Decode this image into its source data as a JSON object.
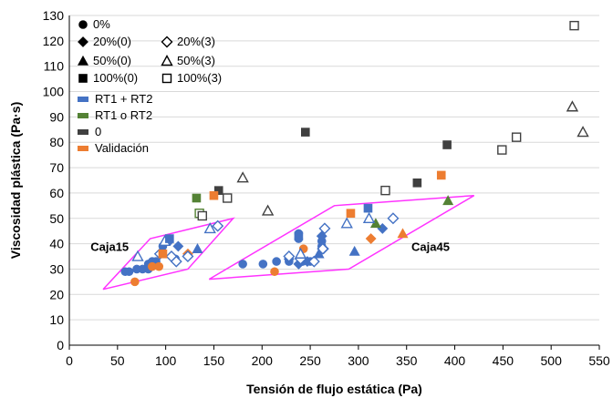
{
  "chart_data": {
    "type": "scatter",
    "xlabel": "Tensión de flujo estática (Pa)",
    "ylabel": "Viscosidad plástica (Pa·s)",
    "xlim": [
      0,
      550
    ],
    "ylim": [
      0,
      130
    ],
    "x_ticks": [
      "0",
      "50",
      "100",
      "150",
      "200",
      "250",
      "300",
      "350",
      "400",
      "450",
      "500",
      "550"
    ],
    "y_ticks": [
      "0",
      "10",
      "20",
      "30",
      "40",
      "50",
      "60",
      "70",
      "80",
      "90",
      "100",
      "110",
      "120",
      "130"
    ],
    "grid": "horizontal",
    "colors": {
      "rt12": "#4472c4",
      "rt1o2": "#548235",
      "zero": "#404040",
      "validacion": "#ed7d31",
      "box": "#ff33ff"
    },
    "legend": {
      "shapes": [
        {
          "label": "0%",
          "marker": "circle",
          "fill": "filled"
        },
        {
          "label": "20%(0)",
          "marker": "diamond",
          "fill": "filled"
        },
        {
          "label": "20%(3)",
          "marker": "diamond",
          "fill": "open"
        },
        {
          "label": "50%(0)",
          "marker": "triangle",
          "fill": "filled"
        },
        {
          "label": "50%(3)",
          "marker": "triangle",
          "fill": "open"
        },
        {
          "label": "100%(0)",
          "marker": "square",
          "fill": "filled"
        },
        {
          "label": "100%(3)",
          "marker": "square",
          "fill": "open"
        }
      ],
      "colors": [
        {
          "label": "RT1 + RT2",
          "color": "rt12"
        },
        {
          "label": "RT1 o RT2",
          "color": "rt1o2"
        },
        {
          "label": "0",
          "color": "zero"
        },
        {
          "label": "Validación",
          "color": "validacion"
        }
      ]
    },
    "annotations": [
      {
        "text": "Caja15",
        "x": 22,
        "y": 39
      },
      {
        "text": "Caja45",
        "x": 355,
        "y": 39
      }
    ],
    "boxes": [
      {
        "name": "Caja15",
        "points": [
          [
            35,
            22
          ],
          [
            84,
            42
          ],
          [
            170,
            50
          ],
          [
            123,
            30
          ],
          [
            35,
            22
          ]
        ]
      },
      {
        "name": "Caja45",
        "points": [
          [
            145,
            26
          ],
          [
            275,
            55
          ],
          [
            420,
            59
          ],
          [
            290,
            30
          ],
          [
            145,
            26
          ]
        ]
      }
    ],
    "points": [
      {
        "x": 58,
        "y": 29,
        "m": "circle",
        "f": "filled",
        "c": "rt12"
      },
      {
        "x": 62,
        "y": 29,
        "m": "circle",
        "f": "filled",
        "c": "rt12"
      },
      {
        "x": 70,
        "y": 30,
        "m": "circle",
        "f": "filled",
        "c": "rt12"
      },
      {
        "x": 76,
        "y": 30,
        "m": "circle",
        "f": "filled",
        "c": "rt12"
      },
      {
        "x": 82,
        "y": 30,
        "m": "circle",
        "f": "filled",
        "c": "rt12"
      },
      {
        "x": 82,
        "y": 32,
        "m": "circle",
        "f": "filled",
        "c": "rt12"
      },
      {
        "x": 86,
        "y": 33,
        "m": "circle",
        "f": "filled",
        "c": "rt12"
      },
      {
        "x": 90,
        "y": 33,
        "m": "circle",
        "f": "filled",
        "c": "rt12"
      },
      {
        "x": 97,
        "y": 39,
        "m": "circle",
        "f": "filled",
        "c": "rt12"
      },
      {
        "x": 103,
        "y": 41,
        "m": "circle",
        "f": "filled",
        "c": "rt12"
      },
      {
        "x": 110,
        "y": 34,
        "m": "circle",
        "f": "filled",
        "c": "rt12"
      },
      {
        "x": 180,
        "y": 32,
        "m": "circle",
        "f": "filled",
        "c": "rt12"
      },
      {
        "x": 201,
        "y": 32,
        "m": "circle",
        "f": "filled",
        "c": "rt12"
      },
      {
        "x": 215,
        "y": 33,
        "m": "circle",
        "f": "filled",
        "c": "rt12"
      },
      {
        "x": 228,
        "y": 33,
        "m": "circle",
        "f": "filled",
        "c": "rt12"
      },
      {
        "x": 238,
        "y": 44,
        "m": "circle",
        "f": "filled",
        "c": "rt12"
      },
      {
        "x": 238,
        "y": 42,
        "m": "circle",
        "f": "filled",
        "c": "rt12"
      },
      {
        "x": 242,
        "y": 33,
        "m": "circle",
        "f": "filled",
        "c": "rt12"
      },
      {
        "x": 250,
        "y": 33,
        "m": "circle",
        "f": "filled",
        "c": "rt12"
      },
      {
        "x": 262,
        "y": 39,
        "m": "circle",
        "f": "filled",
        "c": "rt12"
      },
      {
        "x": 262,
        "y": 41,
        "m": "circle",
        "f": "filled",
        "c": "rt12"
      },
      {
        "x": 68,
        "y": 25,
        "m": "circle",
        "f": "filled",
        "c": "validacion"
      },
      {
        "x": 86,
        "y": 31,
        "m": "circle",
        "f": "filled",
        "c": "validacion"
      },
      {
        "x": 93,
        "y": 31,
        "m": "circle",
        "f": "filled",
        "c": "validacion"
      },
      {
        "x": 213,
        "y": 29,
        "m": "circle",
        "f": "filled",
        "c": "validacion"
      },
      {
        "x": 243,
        "y": 38,
        "m": "circle",
        "f": "filled",
        "c": "validacion"
      },
      {
        "x": 113,
        "y": 39,
        "m": "diamond",
        "f": "filled",
        "c": "rt12"
      },
      {
        "x": 228,
        "y": 34,
        "m": "diamond",
        "f": "filled",
        "c": "rt12"
      },
      {
        "x": 238,
        "y": 32,
        "m": "diamond",
        "f": "filled",
        "c": "rt12"
      },
      {
        "x": 247,
        "y": 33,
        "m": "diamond",
        "f": "filled",
        "c": "rt12"
      },
      {
        "x": 262,
        "y": 43,
        "m": "diamond",
        "f": "filled",
        "c": "rt12"
      },
      {
        "x": 264,
        "y": 38,
        "m": "diamond",
        "f": "filled",
        "c": "rt12"
      },
      {
        "x": 325,
        "y": 46,
        "m": "diamond",
        "f": "filled",
        "c": "rt12"
      },
      {
        "x": 123,
        "y": 36,
        "m": "diamond",
        "f": "filled",
        "c": "validacion"
      },
      {
        "x": 313,
        "y": 42,
        "m": "diamond",
        "f": "filled",
        "c": "validacion"
      },
      {
        "x": 94,
        "y": 36,
        "m": "diamond",
        "f": "open",
        "c": "rt12"
      },
      {
        "x": 106,
        "y": 35,
        "m": "diamond",
        "f": "open",
        "c": "rt12"
      },
      {
        "x": 111,
        "y": 33,
        "m": "diamond",
        "f": "open",
        "c": "rt12"
      },
      {
        "x": 123,
        "y": 35,
        "m": "diamond",
        "f": "open",
        "c": "rt12"
      },
      {
        "x": 154,
        "y": 47,
        "m": "diamond",
        "f": "open",
        "c": "rt12"
      },
      {
        "x": 228,
        "y": 35,
        "m": "diamond",
        "f": "open",
        "c": "rt12"
      },
      {
        "x": 240,
        "y": 34,
        "m": "diamond",
        "f": "open",
        "c": "rt12"
      },
      {
        "x": 254,
        "y": 33,
        "m": "diamond",
        "f": "open",
        "c": "rt12"
      },
      {
        "x": 263,
        "y": 38,
        "m": "diamond",
        "f": "open",
        "c": "rt12"
      },
      {
        "x": 265,
        "y": 46,
        "m": "diamond",
        "f": "open",
        "c": "rt12"
      },
      {
        "x": 336,
        "y": 50,
        "m": "diamond",
        "f": "open",
        "c": "rt12"
      },
      {
        "x": 133,
        "y": 38,
        "m": "triangle",
        "f": "filled",
        "c": "rt12"
      },
      {
        "x": 259,
        "y": 36,
        "m": "triangle",
        "f": "filled",
        "c": "rt12"
      },
      {
        "x": 296,
        "y": 37,
        "m": "triangle",
        "f": "filled",
        "c": "rt12"
      },
      {
        "x": 318,
        "y": 48,
        "m": "triangle",
        "f": "filled",
        "c": "rt1o2"
      },
      {
        "x": 393,
        "y": 57,
        "m": "triangle",
        "f": "filled",
        "c": "rt1o2"
      },
      {
        "x": 346,
        "y": 44,
        "m": "triangle",
        "f": "filled",
        "c": "validacion"
      },
      {
        "x": 71,
        "y": 35,
        "m": "triangle",
        "f": "open",
        "c": "rt12"
      },
      {
        "x": 99,
        "y": 41,
        "m": "triangle",
        "f": "open",
        "c": "rt12"
      },
      {
        "x": 146,
        "y": 46,
        "m": "triangle",
        "f": "open",
        "c": "rt12"
      },
      {
        "x": 240,
        "y": 36,
        "m": "triangle",
        "f": "open",
        "c": "rt12"
      },
      {
        "x": 288,
        "y": 48,
        "m": "triangle",
        "f": "open",
        "c": "rt12"
      },
      {
        "x": 311,
        "y": 50,
        "m": "triangle",
        "f": "open",
        "c": "rt12"
      },
      {
        "x": 180,
        "y": 66,
        "m": "triangle",
        "f": "open",
        "c": "zero"
      },
      {
        "x": 206,
        "y": 53,
        "m": "triangle",
        "f": "open",
        "c": "zero"
      },
      {
        "x": 522,
        "y": 94,
        "m": "triangle",
        "f": "open",
        "c": "zero"
      },
      {
        "x": 533,
        "y": 84,
        "m": "triangle",
        "f": "open",
        "c": "zero"
      },
      {
        "x": 104,
        "y": 42,
        "m": "square",
        "f": "filled",
        "c": "rt12"
      },
      {
        "x": 238,
        "y": 43,
        "m": "square",
        "f": "filled",
        "c": "rt12"
      },
      {
        "x": 310,
        "y": 54,
        "m": "square",
        "f": "filled",
        "c": "rt12"
      },
      {
        "x": 132,
        "y": 58,
        "m": "square",
        "f": "filled",
        "c": "rt1o2"
      },
      {
        "x": 155,
        "y": 61,
        "m": "square",
        "f": "filled",
        "c": "zero"
      },
      {
        "x": 245,
        "y": 84,
        "m": "square",
        "f": "filled",
        "c": "zero"
      },
      {
        "x": 361,
        "y": 64,
        "m": "square",
        "f": "filled",
        "c": "zero"
      },
      {
        "x": 392,
        "y": 79,
        "m": "square",
        "f": "filled",
        "c": "zero"
      },
      {
        "x": 150,
        "y": 59,
        "m": "square",
        "f": "filled",
        "c": "validacion"
      },
      {
        "x": 292,
        "y": 52,
        "m": "square",
        "f": "filled",
        "c": "validacion"
      },
      {
        "x": 386,
        "y": 67,
        "m": "square",
        "f": "filled",
        "c": "validacion"
      },
      {
        "x": 97,
        "y": 36,
        "m": "square",
        "f": "filled",
        "c": "validacion"
      },
      {
        "x": 135,
        "y": 52,
        "m": "square",
        "f": "open",
        "c": "rt1o2"
      },
      {
        "x": 138,
        "y": 51,
        "m": "square",
        "f": "open",
        "c": "zero"
      },
      {
        "x": 164,
        "y": 58,
        "m": "square",
        "f": "open",
        "c": "zero"
      },
      {
        "x": 328,
        "y": 61,
        "m": "square",
        "f": "open",
        "c": "zero"
      },
      {
        "x": 449,
        "y": 77,
        "m": "square",
        "f": "open",
        "c": "zero"
      },
      {
        "x": 464,
        "y": 82,
        "m": "square",
        "f": "open",
        "c": "zero"
      },
      {
        "x": 524,
        "y": 126,
        "m": "square",
        "f": "open",
        "c": "zero"
      }
    ]
  }
}
